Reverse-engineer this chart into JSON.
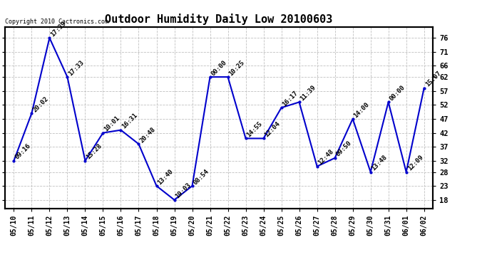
{
  "title": "Outdoor Humidity Daily Low 20100603",
  "copyright": "Copyright 2010 Cactronics.com",
  "x_labels": [
    "05/10",
    "05/11",
    "05/12",
    "05/13",
    "05/14",
    "05/15",
    "05/16",
    "05/17",
    "05/18",
    "05/19",
    "05/20",
    "05/21",
    "05/22",
    "05/23",
    "05/24",
    "05/25",
    "05/26",
    "05/27",
    "05/28",
    "05/29",
    "05/30",
    "05/31",
    "06/01",
    "06/02"
  ],
  "y_values": [
    32,
    49,
    76,
    62,
    32,
    42,
    43,
    38,
    23,
    18,
    23,
    62,
    62,
    40,
    40,
    51,
    53,
    30,
    33,
    47,
    28,
    53,
    28,
    58
  ],
  "annotations": [
    "09:16",
    "20:02",
    "17:39",
    "17:33",
    "15:28",
    "10:01",
    "16:31",
    "20:48",
    "13:40",
    "19:03",
    "08:54",
    "00:00",
    "10:25",
    "14:55",
    "12:04",
    "16:17",
    "11:39",
    "12:48",
    "09:50",
    "14:00",
    "13:48",
    "00:00",
    "12:09",
    "15:07"
  ],
  "line_color": "#0000cc",
  "marker_color": "#0000cc",
  "bg_color": "#ffffff",
  "grid_color": "#c0c0c0",
  "ylim": [
    15,
    80
  ],
  "yticks": [
    18,
    23,
    28,
    32,
    37,
    42,
    47,
    52,
    57,
    62,
    66,
    71,
    76
  ],
  "title_fontsize": 11,
  "annotation_fontsize": 6.5,
  "copyright_fontsize": 6,
  "tick_fontsize": 7.5,
  "xlabel_fontsize": 7
}
